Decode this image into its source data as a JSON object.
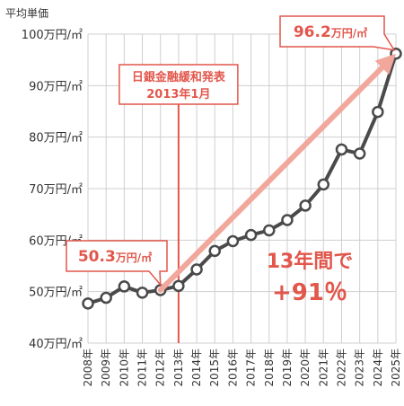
{
  "chart_data": {
    "type": "line",
    "ylabel": "平均単価",
    "ylim": [
      40,
      100
    ],
    "ytick_step": 10,
    "ytick_suffix": "万円/㎡",
    "grid": true,
    "x": [
      "2008年",
      "2009年",
      "2010年",
      "2011年",
      "2012年",
      "2013年",
      "2014年",
      "2015年",
      "2016年",
      "2017年",
      "2018年",
      "2019年",
      "2020年",
      "2021年",
      "2022年",
      "2023年",
      "2024年",
      "2025年"
    ],
    "series": [
      {
        "values": [
          47.7,
          48.8,
          51.0,
          49.8,
          50.3,
          51.1,
          54.3,
          57.9,
          59.8,
          61.0,
          61.9,
          63.9,
          66.7,
          70.8,
          77.6,
          76.8,
          84.9,
          96.2
        ]
      }
    ],
    "annotations": {
      "event_line": {
        "x": "2013年",
        "line1": "日銀金融緩和発表",
        "line2": "2013年1月"
      },
      "start_label": {
        "value": "50.3",
        "unit": "万円/㎡"
      },
      "end_label": {
        "value": "96.2",
        "unit": "万円/㎡"
      },
      "growth": {
        "line1": "13年間で",
        "line2": "+91％"
      },
      "trend_arrow": {
        "from_x": "2012年",
        "from_y": 50.3,
        "to_x": "2025年",
        "to_y": 96.2
      }
    }
  },
  "colors": {
    "line": "#4a4a4a",
    "arrow": "#f2a79c",
    "accent": "#e2574c",
    "grid": "#cfcfcf",
    "text": "#333333"
  }
}
